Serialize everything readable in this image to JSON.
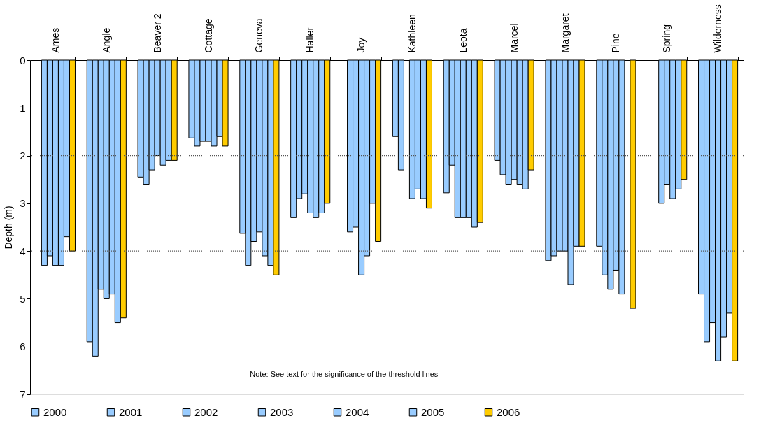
{
  "chart_data": {
    "type": "bar",
    "ylabel": "Depth (m)",
    "categories": [
      "Ames",
      "Angle",
      "Beaver 2",
      "Cottage",
      "Geneva",
      "Haller",
      "Joy",
      "Kathleen",
      "Leota",
      "Marcel",
      "Margaret",
      "Pine",
      "Spring",
      "Wilderness"
    ],
    "series": [
      {
        "name": "2000",
        "color": "#99ccff",
        "values": [
          null,
          5.9,
          2.45,
          1.63,
          3.63,
          3.3,
          null,
          1.6,
          2.78,
          2.1,
          4.2,
          3.9,
          null,
          4.9
        ]
      },
      {
        "name": "2001",
        "color": "#99ccff",
        "values": [
          4.3,
          6.2,
          2.6,
          1.8,
          4.3,
          2.9,
          3.6,
          2.3,
          2.2,
          2.4,
          4.1,
          4.5,
          null,
          5.9
        ]
      },
      {
        "name": "2002",
        "color": "#99ccff",
        "values": [
          4.1,
          4.8,
          2.3,
          1.7,
          3.8,
          2.8,
          3.5,
          null,
          3.3,
          2.6,
          4.0,
          4.8,
          3.0,
          5.5
        ]
      },
      {
        "name": "2003",
        "color": "#99ccff",
        "values": [
          4.3,
          5.0,
          2.0,
          1.7,
          3.6,
          3.2,
          4.5,
          2.9,
          3.3,
          2.5,
          4.0,
          4.4,
          2.6,
          6.3
        ]
      },
      {
        "name": "2004",
        "color": "#99ccff",
        "values": [
          4.3,
          4.9,
          2.2,
          1.8,
          4.1,
          3.3,
          4.1,
          2.7,
          3.3,
          2.6,
          4.7,
          4.9,
          2.9,
          5.8
        ]
      },
      {
        "name": "2005",
        "color": "#99ccff",
        "values": [
          3.7,
          5.5,
          2.1,
          1.6,
          4.3,
          3.2,
          3.0,
          2.9,
          3.5,
          2.7,
          3.9,
          null,
          2.7,
          5.3
        ]
      },
      {
        "name": "2006",
        "color": "#ffcc00",
        "values": [
          4.0,
          5.4,
          2.1,
          1.8,
          4.5,
          3.0,
          3.8,
          3.1,
          3.4,
          2.3,
          3.9,
          5.2,
          2.5,
          6.3
        ]
      }
    ],
    "ylim": [
      7,
      0
    ],
    "yticks": [
      0,
      1,
      2,
      3,
      4,
      5,
      6,
      7
    ],
    "grid": false,
    "legend": "bottom",
    "ref_lines": [
      {
        "axis": "y",
        "value": 2,
        "line_style": "dotted",
        "color": "#555555"
      },
      {
        "axis": "y",
        "value": 4,
        "line_style": "dotted",
        "color": "#555555"
      }
    ],
    "annotations": [
      "Note: See text for the significance of the threshold lines"
    ]
  }
}
